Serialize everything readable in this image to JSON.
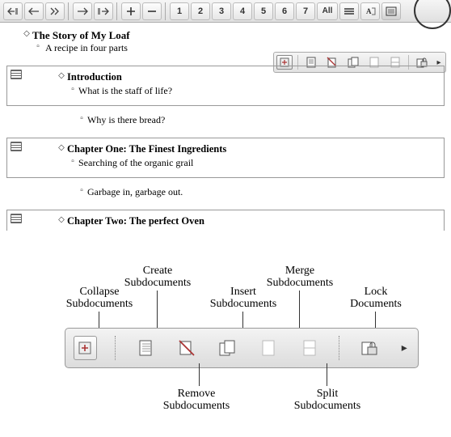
{
  "toolbar": {
    "levels": [
      "1",
      "2",
      "3",
      "4",
      "5",
      "6",
      "7"
    ],
    "all_label": "All"
  },
  "document": {
    "title": "The Story of My Loaf",
    "subtitle": "A recipe in four parts",
    "sections": [
      {
        "title": "Introduction",
        "line": "What is the staff of life?",
        "outside": "Why is there bread?"
      },
      {
        "title": "Chapter One: The Finest Ingredients",
        "line": "Searching of the organic grail",
        "outside": "Garbage in, garbage out."
      },
      {
        "title": "Chapter Two: The perfect Oven",
        "line": "",
        "outside": ""
      }
    ]
  },
  "diagram": {
    "labels": {
      "collapse": "Collapse\nSubdocuments",
      "create": "Create\nSubdocuments",
      "remove": "Remove\nSubdocuments",
      "insert": "Insert\nSubdocuments",
      "merge": "Merge\nSubdocuments",
      "split": "Split\nSubdocuments",
      "lock": "Lock\nDocuments"
    }
  },
  "colors": {
    "toolbar_border": "#aaaaaa",
    "button_border": "#bbbbbb",
    "subdoc_border": "#999999",
    "text": "#000000",
    "circle": "#333333"
  }
}
